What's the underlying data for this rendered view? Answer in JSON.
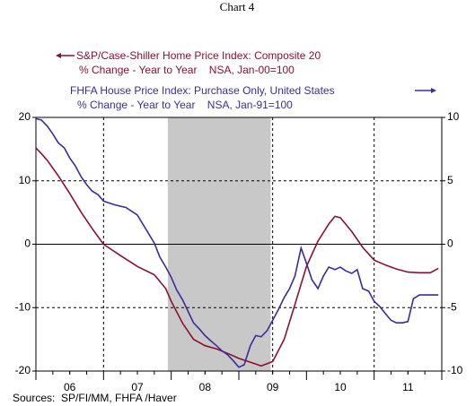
{
  "chart_data": {
    "type": "line",
    "title": "Chart 4",
    "source": "Sources:  SP/FI/MM, FHFA /Haver",
    "xlim": [
      6,
      12
    ],
    "xticks": [
      {
        "value": 6.5,
        "label": "06"
      },
      {
        "value": 7.5,
        "label": "07"
      },
      {
        "value": 8.5,
        "label": "08"
      },
      {
        "value": 9.5,
        "label": "09"
      },
      {
        "value": 10.5,
        "label": "10"
      },
      {
        "value": 11.5,
        "label": "11"
      }
    ],
    "ylim": [
      -20,
      20
    ],
    "yticks": [
      -20,
      -10,
      0,
      10,
      20
    ],
    "y2lim": [
      -10,
      10
    ],
    "y2ticks": [
      -10,
      -5,
      0,
      5,
      10
    ],
    "grid": true,
    "vlines": [
      7,
      9.5,
      11
    ],
    "shade": [
      7.95,
      9.47
    ],
    "series": [
      {
        "name": "S&P/Case-Shiller Home Price Index: Composite 20",
        "subtitle": "% Change - Year to Year    NSA, Jan-00=100",
        "color": "#8b1030",
        "axis": "y",
        "x": [
          6.0,
          6.08,
          6.17,
          6.25,
          6.33,
          6.5,
          6.67,
          6.83,
          7.0,
          7.25,
          7.5,
          7.75,
          7.92,
          8.0,
          8.17,
          8.33,
          8.5,
          8.67,
          8.83,
          9.0,
          9.17,
          9.33,
          9.5,
          9.67,
          9.83,
          10.0,
          10.17,
          10.33,
          10.42,
          10.5,
          10.67,
          10.83,
          11.0,
          11.17,
          11.33,
          11.5,
          11.67,
          11.83,
          11.95
        ],
        "values": [
          15.2,
          14.3,
          13.2,
          12,
          10.8,
          8,
          5,
          2.5,
          0,
          -1.8,
          -3.5,
          -4.8,
          -7,
          -9,
          -12.5,
          -15,
          -16,
          -16.5,
          -17.2,
          -18,
          -18.6,
          -19.2,
          -18.5,
          -15,
          -9.5,
          -3.5,
          0.5,
          3.2,
          4.4,
          4.2,
          2,
          -0.5,
          -2.5,
          -3.3,
          -3.9,
          -4.4,
          -4.5,
          -4.5,
          -3.8
        ]
      },
      {
        "name": "FHFA House Price Index: Purchase Only, United States",
        "subtitle": "% Change - Year to Year    NSA, Jan-91=100",
        "color": "#3b2c9e",
        "axis": "y2",
        "x": [
          6.0,
          6.08,
          6.17,
          6.25,
          6.33,
          6.42,
          6.5,
          6.58,
          6.67,
          6.75,
          6.83,
          6.92,
          7.0,
          7.17,
          7.33,
          7.5,
          7.58,
          7.67,
          7.75,
          7.83,
          7.92,
          8.0,
          8.08,
          8.17,
          8.25,
          8.33,
          8.42,
          8.5,
          8.58,
          8.67,
          8.75,
          8.83,
          8.92,
          9.0,
          9.08,
          9.17,
          9.25,
          9.33,
          9.42,
          9.5,
          9.58,
          9.67,
          9.75,
          9.83,
          9.92,
          10.0,
          10.08,
          10.17,
          10.25,
          10.33,
          10.42,
          10.5,
          10.58,
          10.67,
          10.75,
          10.83,
          10.92,
          11.0,
          11.08,
          11.17,
          11.25,
          11.33,
          11.42,
          11.5,
          11.58,
          11.67,
          11.83,
          11.95
        ],
        "values": [
          9.9,
          9.8,
          9.3,
          8.7,
          8.0,
          7.6,
          6.8,
          6.2,
          5.3,
          4.7,
          4.2,
          3.9,
          3.4,
          3.1,
          2.9,
          2.3,
          1.6,
          0.8,
          0.1,
          -1.0,
          -1.8,
          -2.6,
          -3.6,
          -4.4,
          -5.3,
          -6.2,
          -6.7,
          -7.2,
          -7.6,
          -8.0,
          -8.4,
          -8.7,
          -9.2,
          -9.7,
          -9.5,
          -8.0,
          -7.2,
          -7.3,
          -6.8,
          -6.0,
          -5.2,
          -4.2,
          -3.5,
          -2.5,
          -0.3,
          -1.5,
          -2.8,
          -3.5,
          -2.5,
          -1.8,
          -2.0,
          -1.8,
          -2.1,
          -2.3,
          -2.0,
          -3.5,
          -3.7,
          -4.5,
          -4.9,
          -5.5,
          -6.0,
          -6.2,
          -6.2,
          -6.1,
          -4.3,
          -4.0,
          -4.0,
          -4.0
        ]
      }
    ]
  }
}
